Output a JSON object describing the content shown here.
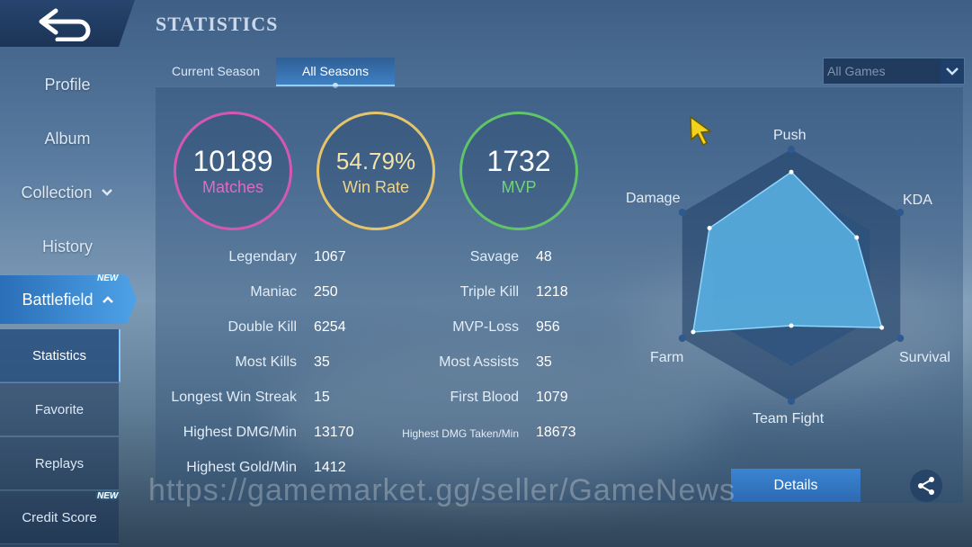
{
  "sidebar": {
    "items": [
      {
        "label": "Profile"
      },
      {
        "label": "Album"
      },
      {
        "label": "Collection"
      },
      {
        "label": "History"
      },
      {
        "label": "Battlefield"
      }
    ],
    "sub_items": [
      {
        "label": "Statistics"
      },
      {
        "label": "Favorite"
      },
      {
        "label": "Replays"
      },
      {
        "label": "Credit Score"
      }
    ],
    "badges": {
      "battlefield": "NEW",
      "credit_score": "NEW"
    }
  },
  "header": {
    "title": "STATISTICS"
  },
  "tabs": [
    {
      "label": "Current Season"
    },
    {
      "label": "All Seasons"
    }
  ],
  "filter": {
    "value": "All Games"
  },
  "summary": {
    "matches": {
      "value": "10189",
      "label": "Matches",
      "color": "#d458b2"
    },
    "win_rate": {
      "value": "54.79%",
      "label": "Win Rate",
      "color": "#e6c46a"
    },
    "mvp": {
      "value": "1732",
      "label": "MVP",
      "color": "#5fc46a"
    }
  },
  "stats_left": [
    {
      "label": "Legendary",
      "value": "1067"
    },
    {
      "label": "Maniac",
      "value": "250"
    },
    {
      "label": "Double Kill",
      "value": "6254"
    },
    {
      "label": "Most Kills",
      "value": "35"
    },
    {
      "label": "Longest Win Streak",
      "value": "15"
    },
    {
      "label": "Highest DMG/Min",
      "value": "13170"
    },
    {
      "label": "Highest Gold/Min",
      "value": "1412"
    }
  ],
  "stats_right": [
    {
      "label": "Savage",
      "value": "48"
    },
    {
      "label": "Triple Kill",
      "value": "1218"
    },
    {
      "label": "MVP-Loss",
      "value": "956"
    },
    {
      "label": "Most Assists",
      "value": "35"
    },
    {
      "label": "First Blood",
      "value": "1079"
    },
    {
      "label": "Highest DMG Taken/Min",
      "value": "18673"
    }
  ],
  "radar": {
    "axes": [
      "Push",
      "KDA",
      "Survival",
      "Team Fight",
      "Farm",
      "Damage"
    ],
    "values": [
      0.82,
      0.6,
      0.83,
      0.4,
      0.9,
      0.75
    ]
  },
  "buttons": {
    "details": "Details"
  },
  "watermark": "https://gamemarket.gg/seller/GameNews",
  "icons": {
    "back": "back-arrow-icon",
    "share": "share-icon",
    "dropdown": "chevron-down-icon",
    "cursor": "cursor-icon"
  }
}
